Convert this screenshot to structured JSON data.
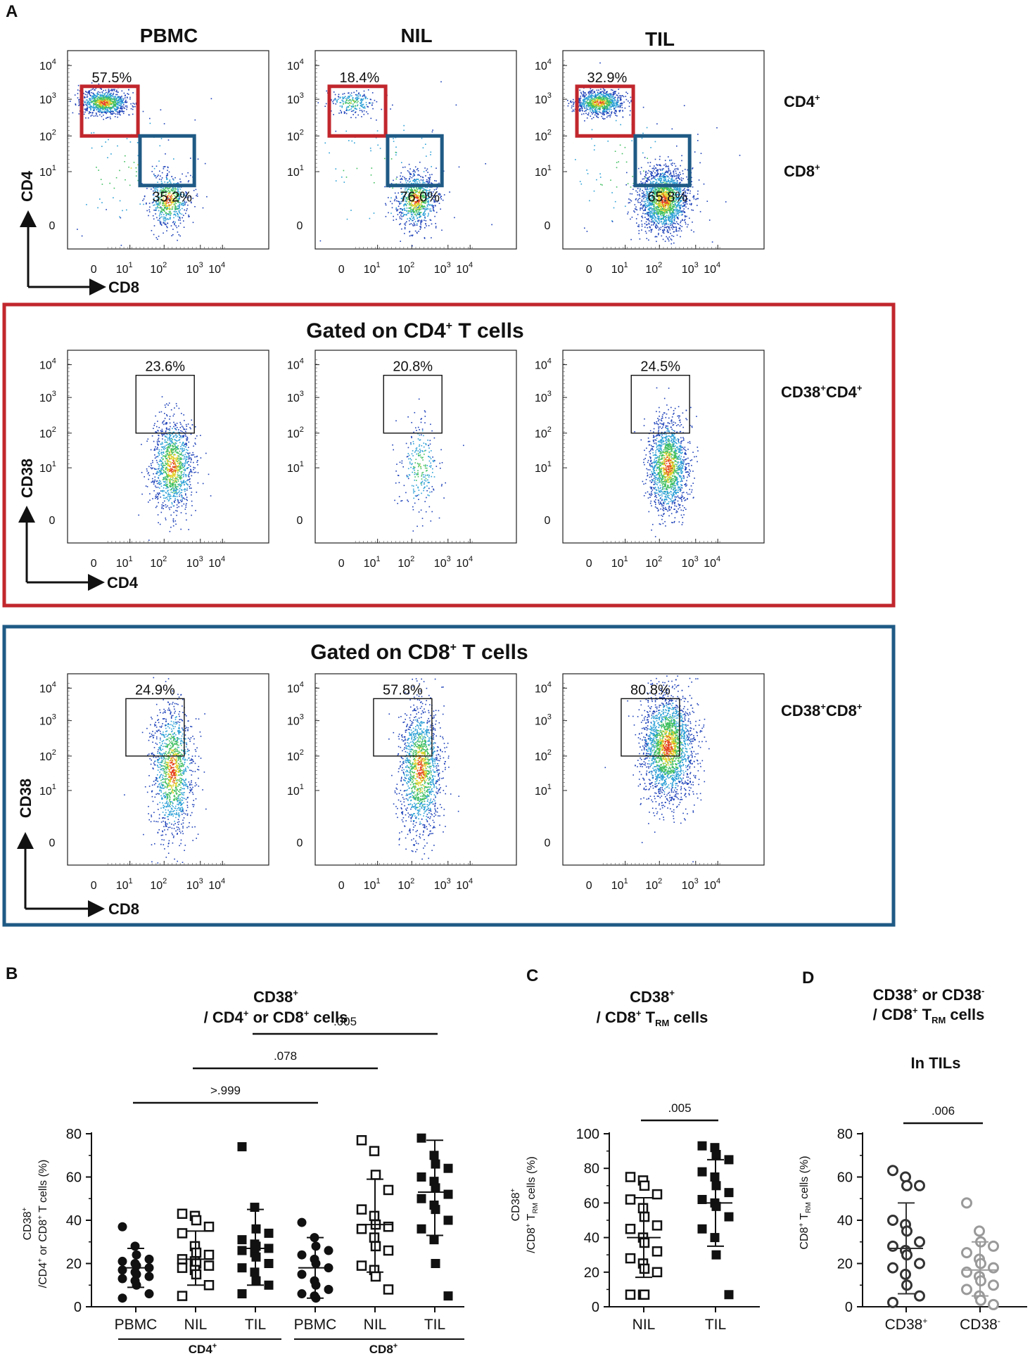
{
  "figure": {
    "panel_labels": {
      "A": "A",
      "B": "B",
      "C": "C",
      "D": "D"
    },
    "panelA": {
      "columns": [
        "PBMC",
        "NIL",
        "TIL"
      ],
      "row1": {
        "right_labels": {
          "cd4": "CD4",
          "cd8": "CD8"
        },
        "label_sup": "+",
        "y_axis": "CD4",
        "x_axis": "CD8",
        "gates": [
          {
            "sample": "PBMC",
            "cd4_pct": "57.5%",
            "cd8_pct": "35.2%"
          },
          {
            "sample": "NIL",
            "cd4_pct": "18.4%",
            "cd8_pct": "76.0%"
          },
          {
            "sample": "TIL",
            "cd4_pct": "32.9%",
            "cd8_pct": "65.8%"
          }
        ]
      },
      "row2": {
        "title_pre": "Gated on CD4",
        "title_sup": "+",
        "title_post": " T cells",
        "right_label": {
          "a": "CD38",
          "b": "CD4",
          "sup": "+"
        },
        "y_axis": "CD38",
        "x_axis": "CD4",
        "gates": [
          {
            "sample": "PBMC",
            "pct": "23.6%"
          },
          {
            "sample": "NIL",
            "pct": "20.8%"
          },
          {
            "sample": "TIL",
            "pct": "24.5%"
          }
        ]
      },
      "row3": {
        "title_pre": "Gated on CD8",
        "title_sup": "+",
        "title_post": " T cells",
        "right_label": {
          "a": "CD38",
          "b": "CD8",
          "sup": "+"
        },
        "y_axis": "CD38",
        "x_axis": "CD8",
        "gates": [
          {
            "sample": "PBMC",
            "pct": "24.9%"
          },
          {
            "sample": "NIL",
            "pct": "57.8%"
          },
          {
            "sample": "TIL",
            "pct": "80.8%"
          }
        ]
      },
      "log_axis_ticks": {
        "zero": "0",
        "base": "10",
        "exps": [
          "1",
          "2",
          "3",
          "4"
        ]
      }
    },
    "panelB": {
      "title_line1": "CD38",
      "title_line2_a": "/ CD4",
      "title_line2_b": " or CD8",
      "title_line2_c": " cells",
      "sup_plus": "+",
      "ylabel_line1": "CD38",
      "ylabel_line2": "/CD4",
      "ylabel_line2_b": " or CD8",
      "ylabel_line2_c": " T cells (%)",
      "group_labels": [
        "CD4",
        "CD8"
      ]
    },
    "panelC": {
      "title_line1": "CD38",
      "title_line2": "/ CD8",
      "title_line2_b": " T",
      "title_sub": "RM",
      "title_line2_c": " cells",
      "ylabel_line1": "CD38",
      "ylabel_line2": "/CD8",
      "ylabel_line2_b": " T",
      "ylabel_sub": "RM",
      "ylabel_line2_c": " cells (%)"
    },
    "panelD": {
      "title_line1_a": "CD38",
      "title_line1_b": " or CD38",
      "sup_minus": "-",
      "title_line2": "/ CD8",
      "title_line2_b": " T",
      "title_sub": "RM",
      "title_line2_c": " cells",
      "subtitle": "In TILs",
      "ylabel": "CD8",
      "ylabel_b": " T",
      "ylabel_sub": "RM",
      "ylabel_c": " cells (%)"
    }
  },
  "chart_data": [
    {
      "type": "scatter",
      "panel": "B",
      "title": "CD38+ / CD4+ or CD8+ cells",
      "ylabel": "CD38+/CD4+ or CD8+ T cells (%)",
      "ylim": [
        0,
        80
      ],
      "yticks": [
        "0",
        "20",
        "40",
        "60",
        "80"
      ],
      "categories": [
        "PBMC",
        "NIL",
        "TIL",
        "PBMC",
        "NIL",
        "TIL"
      ],
      "groups": [
        {
          "name": "CD4+",
          "categories": [
            0,
            1,
            2
          ]
        },
        {
          "name": "CD8+",
          "categories": [
            3,
            4,
            5
          ]
        }
      ],
      "series": [
        {
          "name": "CD4+ PBMC",
          "marker": "circle-filled",
          "values": [
            37,
            28,
            24,
            22,
            21,
            20,
            19,
            18,
            17,
            16,
            15,
            14,
            13,
            12,
            10,
            6,
            4
          ],
          "mean": 18,
          "sd_low": 9,
          "sd_high": 27
        },
        {
          "name": "CD4+ NIL",
          "marker": "square-open",
          "values": [
            43,
            42,
            40,
            37,
            34,
            28,
            25,
            24,
            22,
            21,
            20,
            19,
            18,
            17,
            15,
            10,
            5
          ],
          "mean": 22,
          "sd_low": 10,
          "sd_high": 35
        },
        {
          "name": "CD4+ TIL",
          "marker": "square-filled",
          "values": [
            74,
            46,
            36,
            34,
            31,
            29,
            28,
            27,
            26,
            25,
            23,
            20,
            18,
            16,
            12,
            10,
            6
          ],
          "mean": 27,
          "sd_low": 10,
          "sd_high": 45
        },
        {
          "name": "CD8+ PBMC",
          "marker": "circle-filled",
          "values": [
            39,
            32,
            28,
            26,
            24,
            22,
            20,
            18,
            15,
            12,
            10,
            8,
            6,
            5,
            4
          ],
          "mean": 18,
          "sd_low": 4,
          "sd_high": 32
        },
        {
          "name": "CD8+ NIL",
          "marker": "square-open",
          "values": [
            77,
            72,
            61,
            54,
            45,
            42,
            38,
            37,
            36,
            32,
            28,
            26,
            19,
            17,
            14,
            8
          ],
          "mean": 38,
          "sd_low": 16,
          "sd_high": 59
        },
        {
          "name": "CD8+ TIL",
          "marker": "square-filled",
          "values": [
            78,
            70,
            66,
            64,
            60,
            58,
            55,
            52,
            50,
            47,
            45,
            40,
            36,
            31,
            20,
            5
          ],
          "mean": 53,
          "sd_low": 33,
          "sd_high": 77
        }
      ],
      "comparisons": [
        {
          "from": 0,
          "to": 3,
          "label": ">.999"
        },
        {
          "from": 1,
          "to": 4,
          "label": ".078"
        },
        {
          "from": 2,
          "to": 5,
          "label": ".005"
        }
      ]
    },
    {
      "type": "scatter",
      "panel": "C",
      "title": "CD38+ / CD8+ TRM cells",
      "ylabel": "CD38+/CD8+ TRM cells (%)",
      "ylim": [
        0,
        100
      ],
      "yticks": [
        "0",
        "20",
        "40",
        "60",
        "80",
        "100"
      ],
      "categories": [
        "NIL",
        "TIL"
      ],
      "series": [
        {
          "name": "NIL",
          "marker": "square-open",
          "values": [
            75,
            73,
            70,
            65,
            62,
            57,
            52,
            47,
            45,
            40,
            37,
            32,
            28,
            25,
            22,
            20,
            7,
            7,
            7
          ],
          "mean": 40,
          "sd_low": 17,
          "sd_high": 63
        },
        {
          "name": "TIL",
          "marker": "square-filled",
          "values": [
            93,
            92,
            88,
            85,
            78,
            75,
            70,
            66,
            62,
            60,
            58,
            52,
            45,
            40,
            30,
            7
          ],
          "mean": 60,
          "sd_low": 35,
          "sd_high": 85
        }
      ],
      "comparisons": [
        {
          "from": 0,
          "to": 1,
          "label": ".005"
        }
      ]
    },
    {
      "type": "scatter",
      "panel": "D",
      "title": "CD38+ or CD38- / CD8+ TRM cells — In TILs",
      "ylabel": "CD8+ TRM cells (%)",
      "ylim": [
        0,
        80
      ],
      "yticks": [
        "0",
        "20",
        "40",
        "60",
        "80"
      ],
      "categories": [
        "CD38+",
        "CD38-"
      ],
      "category_labels": {
        "a": "CD38",
        "a_sup": "+",
        "b": "CD38",
        "b_sup": "-"
      },
      "series": [
        {
          "name": "CD38+",
          "marker": "circle-open",
          "color": "#333333",
          "values": [
            63,
            60,
            56,
            56,
            40,
            38,
            35,
            30,
            28,
            26,
            24,
            20,
            18,
            15,
            10,
            5,
            2
          ],
          "mean": 27,
          "sd_low": 6,
          "sd_high": 48
        },
        {
          "name": "CD38-",
          "marker": "circle-open",
          "color": "#9a9a9a",
          "values": [
            48,
            35,
            30,
            28,
            25,
            22,
            20,
            18,
            16,
            14,
            12,
            10,
            8,
            5,
            3,
            1
          ],
          "mean": 17,
          "sd_low": 5,
          "sd_high": 30
        }
      ],
      "comparisons": [
        {
          "from": 0,
          "to": 1,
          "label": ".006"
        }
      ]
    }
  ]
}
